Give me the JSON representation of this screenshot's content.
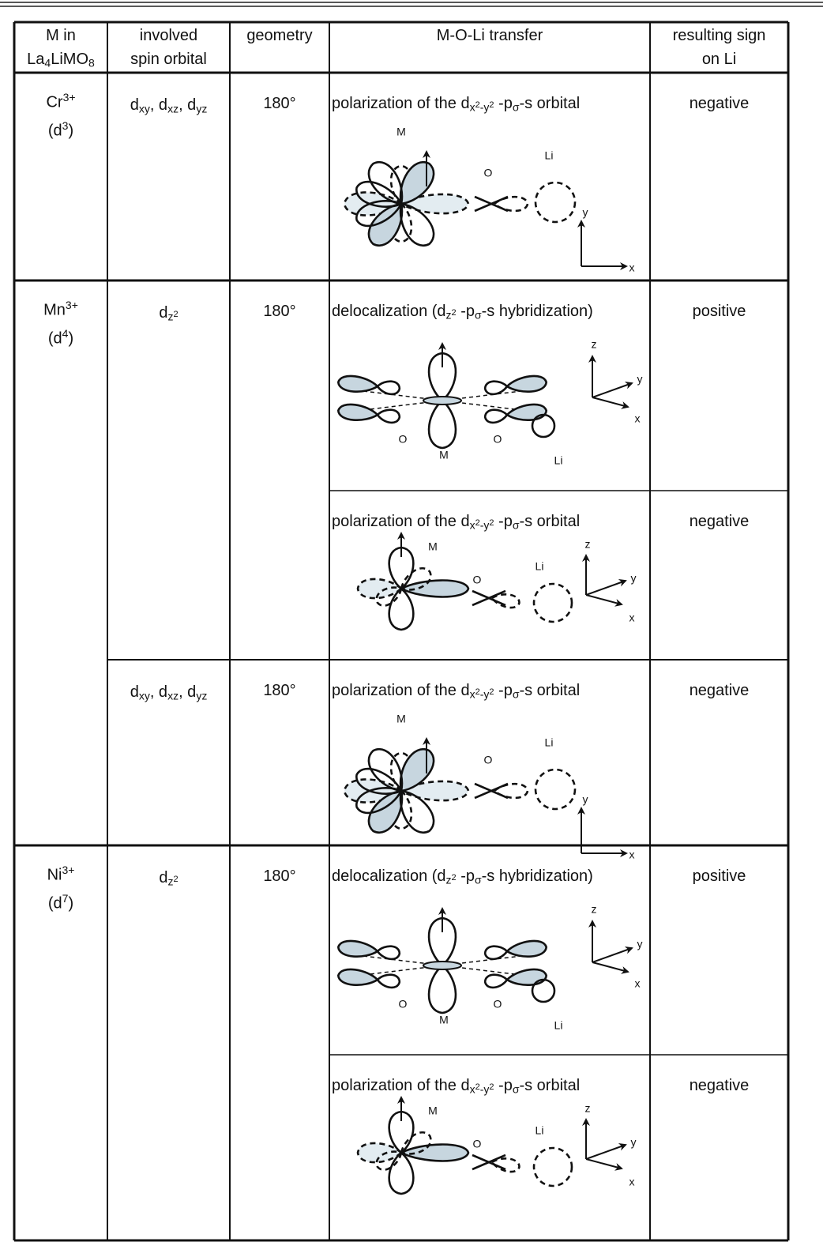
{
  "table": {
    "header": {
      "metal": {
        "line1": "M in",
        "line2": [
          "La",
          "4",
          "LiMO",
          "8"
        ]
      },
      "orbital": [
        "involved",
        "spin orbital"
      ],
      "geometry": "geometry",
      "transfer": "M-O-Li transfer",
      "sign": [
        "resulting sign",
        "on Li"
      ]
    },
    "rows": [
      {
        "ion": [
          "Cr",
          "3+"
        ],
        "config": [
          "(d",
          "3",
          ")"
        ],
        "orbitals": [
          {
            "orbital": [
              "d",
              "xy",
              ", d",
              "xz",
              ", d",
              "yz"
            ],
            "geometry": "180°",
            "transfers": [
              {
                "text": [
                  "polarization of the d",
                  "x",
                  "2",
                  "-y",
                  "2",
                  " -p",
                  "σ",
                  "-s orbital"
                ],
                "labels": [
                  "M",
                  "O",
                  "Li",
                  "y",
                  "x"
                ],
                "sign": "negative"
              }
            ]
          }
        ]
      },
      {
        "ion": [
          "Mn",
          "3+"
        ],
        "config": [
          "(d",
          "4",
          ")"
        ],
        "orbitals": [
          {
            "orbital": [
              "d",
              "z",
              "2"
            ],
            "geometry": "180°",
            "transfers": [
              {
                "text": [
                  "delocalization (d",
                  "z",
                  "2",
                  " -p",
                  "σ",
                  "-s hybridization)"
                ],
                "labels": [
                  "z",
                  "y",
                  "x",
                  "O",
                  "M",
                  "O",
                  "Li"
                ],
                "sign": "positive"
              },
              {
                "text": [
                  "polarization of the d",
                  "x",
                  "2",
                  "-y",
                  "2",
                  " -p",
                  "σ",
                  "-s orbital"
                ],
                "labels": [
                  "M",
                  "O",
                  "Li",
                  "z",
                  "y",
                  "x"
                ],
                "sign": "negative"
              }
            ]
          },
          {
            "orbital": [
              "d",
              "xy",
              ", d",
              "xz",
              ", d",
              "yz"
            ],
            "geometry": "180°",
            "transfers": [
              {
                "text": [
                  "polarization of the d",
                  "x",
                  "2",
                  "-y",
                  "2",
                  " -p",
                  "σ",
                  "-s orbital"
                ],
                "labels": [
                  "M",
                  "O",
                  "Li",
                  "y",
                  "x"
                ],
                "sign": "negative"
              }
            ]
          }
        ]
      },
      {
        "ion": [
          "Ni",
          "3+"
        ],
        "config": [
          "(d",
          "7",
          ")"
        ],
        "orbitals": [
          {
            "orbital": [
              "d",
              "z",
              "2"
            ],
            "geometry": "180°",
            "transfers": [
              {
                "text": [
                  "delocalization (d",
                  "z",
                  "2",
                  " -p",
                  "σ",
                  "-s hybridization)"
                ],
                "labels": [
                  "z",
                  "y",
                  "x",
                  "O",
                  "M",
                  "O",
                  "Li"
                ],
                "sign": "positive"
              },
              {
                "text": [
                  "polarization of the d",
                  "x",
                  "2",
                  "-y",
                  "2",
                  " -p",
                  "σ",
                  "-s orbital"
                ],
                "labels": [
                  "M",
                  "O",
                  "Li",
                  "z",
                  "y",
                  "x"
                ],
                "sign": "negative"
              }
            ]
          }
        ]
      }
    ]
  }
}
